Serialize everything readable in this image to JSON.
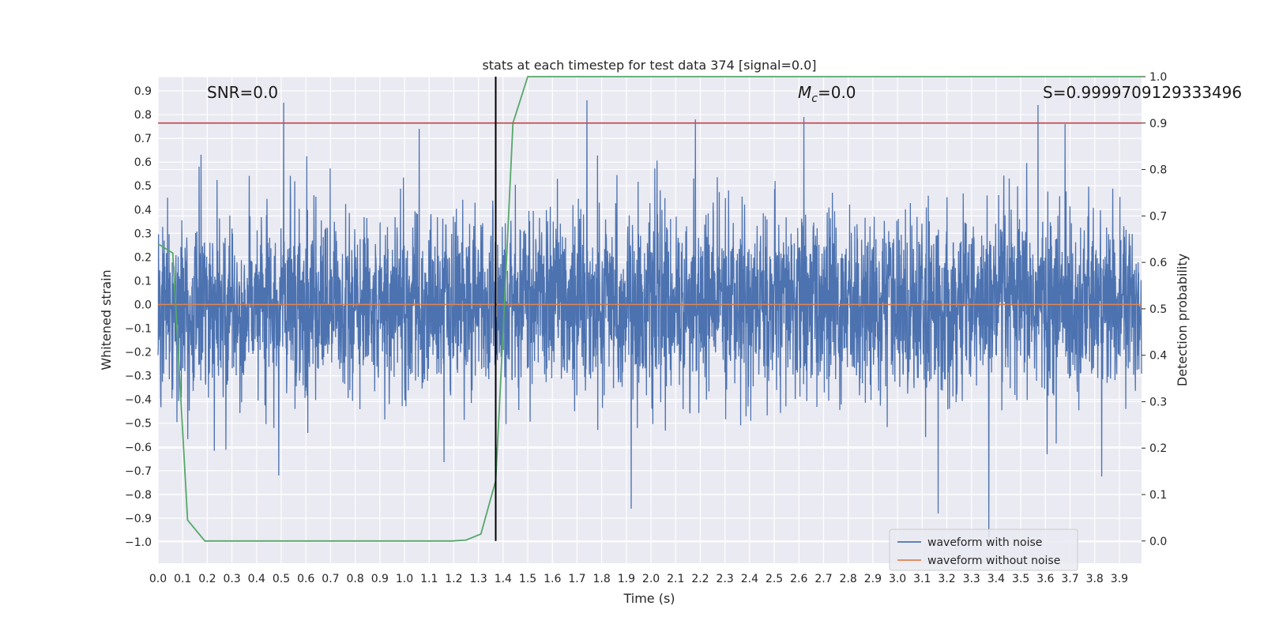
{
  "chart_data": {
    "type": "line",
    "title": "stats at each timestep for test data 374 [signal=0.0]",
    "xlabel": "Time (s)",
    "ylabel_left": "Whitened strain",
    "ylabel_right": "Detection probability",
    "xlim": [
      0.0,
      3.99
    ],
    "ylim_left": [
      -1.09,
      0.96
    ],
    "ylim_right": [
      -0.048,
      1.0
    ],
    "x_ticks": [
      "0.0",
      "0.1",
      "0.2",
      "0.3",
      "0.4",
      "0.5",
      "0.6",
      "0.7",
      "0.8",
      "0.9",
      "1.0",
      "1.1",
      "1.2",
      "1.3",
      "1.4",
      "1.5",
      "1.6",
      "1.7",
      "1.8",
      "1.9",
      "2.0",
      "2.1",
      "2.2",
      "2.3",
      "2.4",
      "2.5",
      "2.6",
      "2.7",
      "2.8",
      "2.9",
      "3.0",
      "3.1",
      "3.2",
      "3.3",
      "3.4",
      "3.5",
      "3.6",
      "3.7",
      "3.8",
      "3.9"
    ],
    "y_ticks_left": [
      "0.9",
      "0.8",
      "0.7",
      "0.6",
      "0.5",
      "0.4",
      "0.3",
      "0.2",
      "0.1",
      "0.0",
      "−0.1",
      "−0.2",
      "−0.3",
      "−0.4",
      "−0.5",
      "−0.6",
      "−0.7",
      "−0.8",
      "−0.9",
      "−1.0"
    ],
    "y_ticks_right": [
      "1.0",
      "0.9",
      "0.8",
      "0.7",
      "0.6",
      "0.5",
      "0.4",
      "0.3",
      "0.2",
      "0.1",
      "0.0"
    ],
    "annotations": {
      "snr": "SNR=0.0",
      "mc_symbol": "M",
      "mc_subscript": "c",
      "mc_value": "=0.0",
      "s": "S=0.9999709129333496"
    },
    "series": [
      {
        "name": "waveform with noise",
        "color": "#4c72b0",
        "axis": "left",
        "kind": "noise",
        "amplitude_range": [
          -0.98,
          0.85
        ],
        "notable_peaks": [
          {
            "x": 0.51,
            "y": 0.85
          },
          {
            "x": 1.06,
            "y": 0.74
          },
          {
            "x": 1.74,
            "y": 0.86
          },
          {
            "x": 2.18,
            "y": 0.78
          },
          {
            "x": 2.62,
            "y": 0.79
          },
          {
            "x": 3.57,
            "y": 0.84
          },
          {
            "x": 3.68,
            "y": 0.76
          },
          {
            "x": 3.37,
            "y": -0.98
          },
          {
            "x": 1.92,
            "y": -0.86
          },
          {
            "x": 0.49,
            "y": -0.72
          }
        ]
      },
      {
        "name": "waveform without noise",
        "color": "#dd8452",
        "axis": "left",
        "x": [
          0.0,
          3.99
        ],
        "y": [
          0.0,
          0.0
        ]
      },
      {
        "color": "#55a868",
        "axis": "right",
        "x": [
          0.0,
          0.06,
          0.12,
          0.19,
          0.25,
          0.5,
          0.75,
          1.0,
          1.19,
          1.25,
          1.31,
          1.37,
          1.4,
          1.44,
          1.5,
          1.75,
          2.0,
          3.0,
          3.99
        ],
        "y": [
          0.64,
          0.62,
          0.045,
          0.0,
          0.0,
          0.0,
          0.0,
          0.0,
          0.0,
          0.002,
          0.015,
          0.13,
          0.45,
          0.9,
          1.0,
          1.0,
          1.0,
          1.0,
          1.0
        ]
      }
    ],
    "threshold": {
      "axis": "right",
      "value": 0.9,
      "color": "#c44e52"
    },
    "vertical_marker": {
      "x": 1.37,
      "color": "#000000"
    },
    "legend": {
      "placement": "lower-right",
      "entries": [
        {
          "label": "waveform with noise",
          "color": "#4c72b0"
        },
        {
          "label": "waveform without noise",
          "color": "#dd8452"
        }
      ]
    },
    "grid": true,
    "plot_background": "#eaeaf2"
  }
}
